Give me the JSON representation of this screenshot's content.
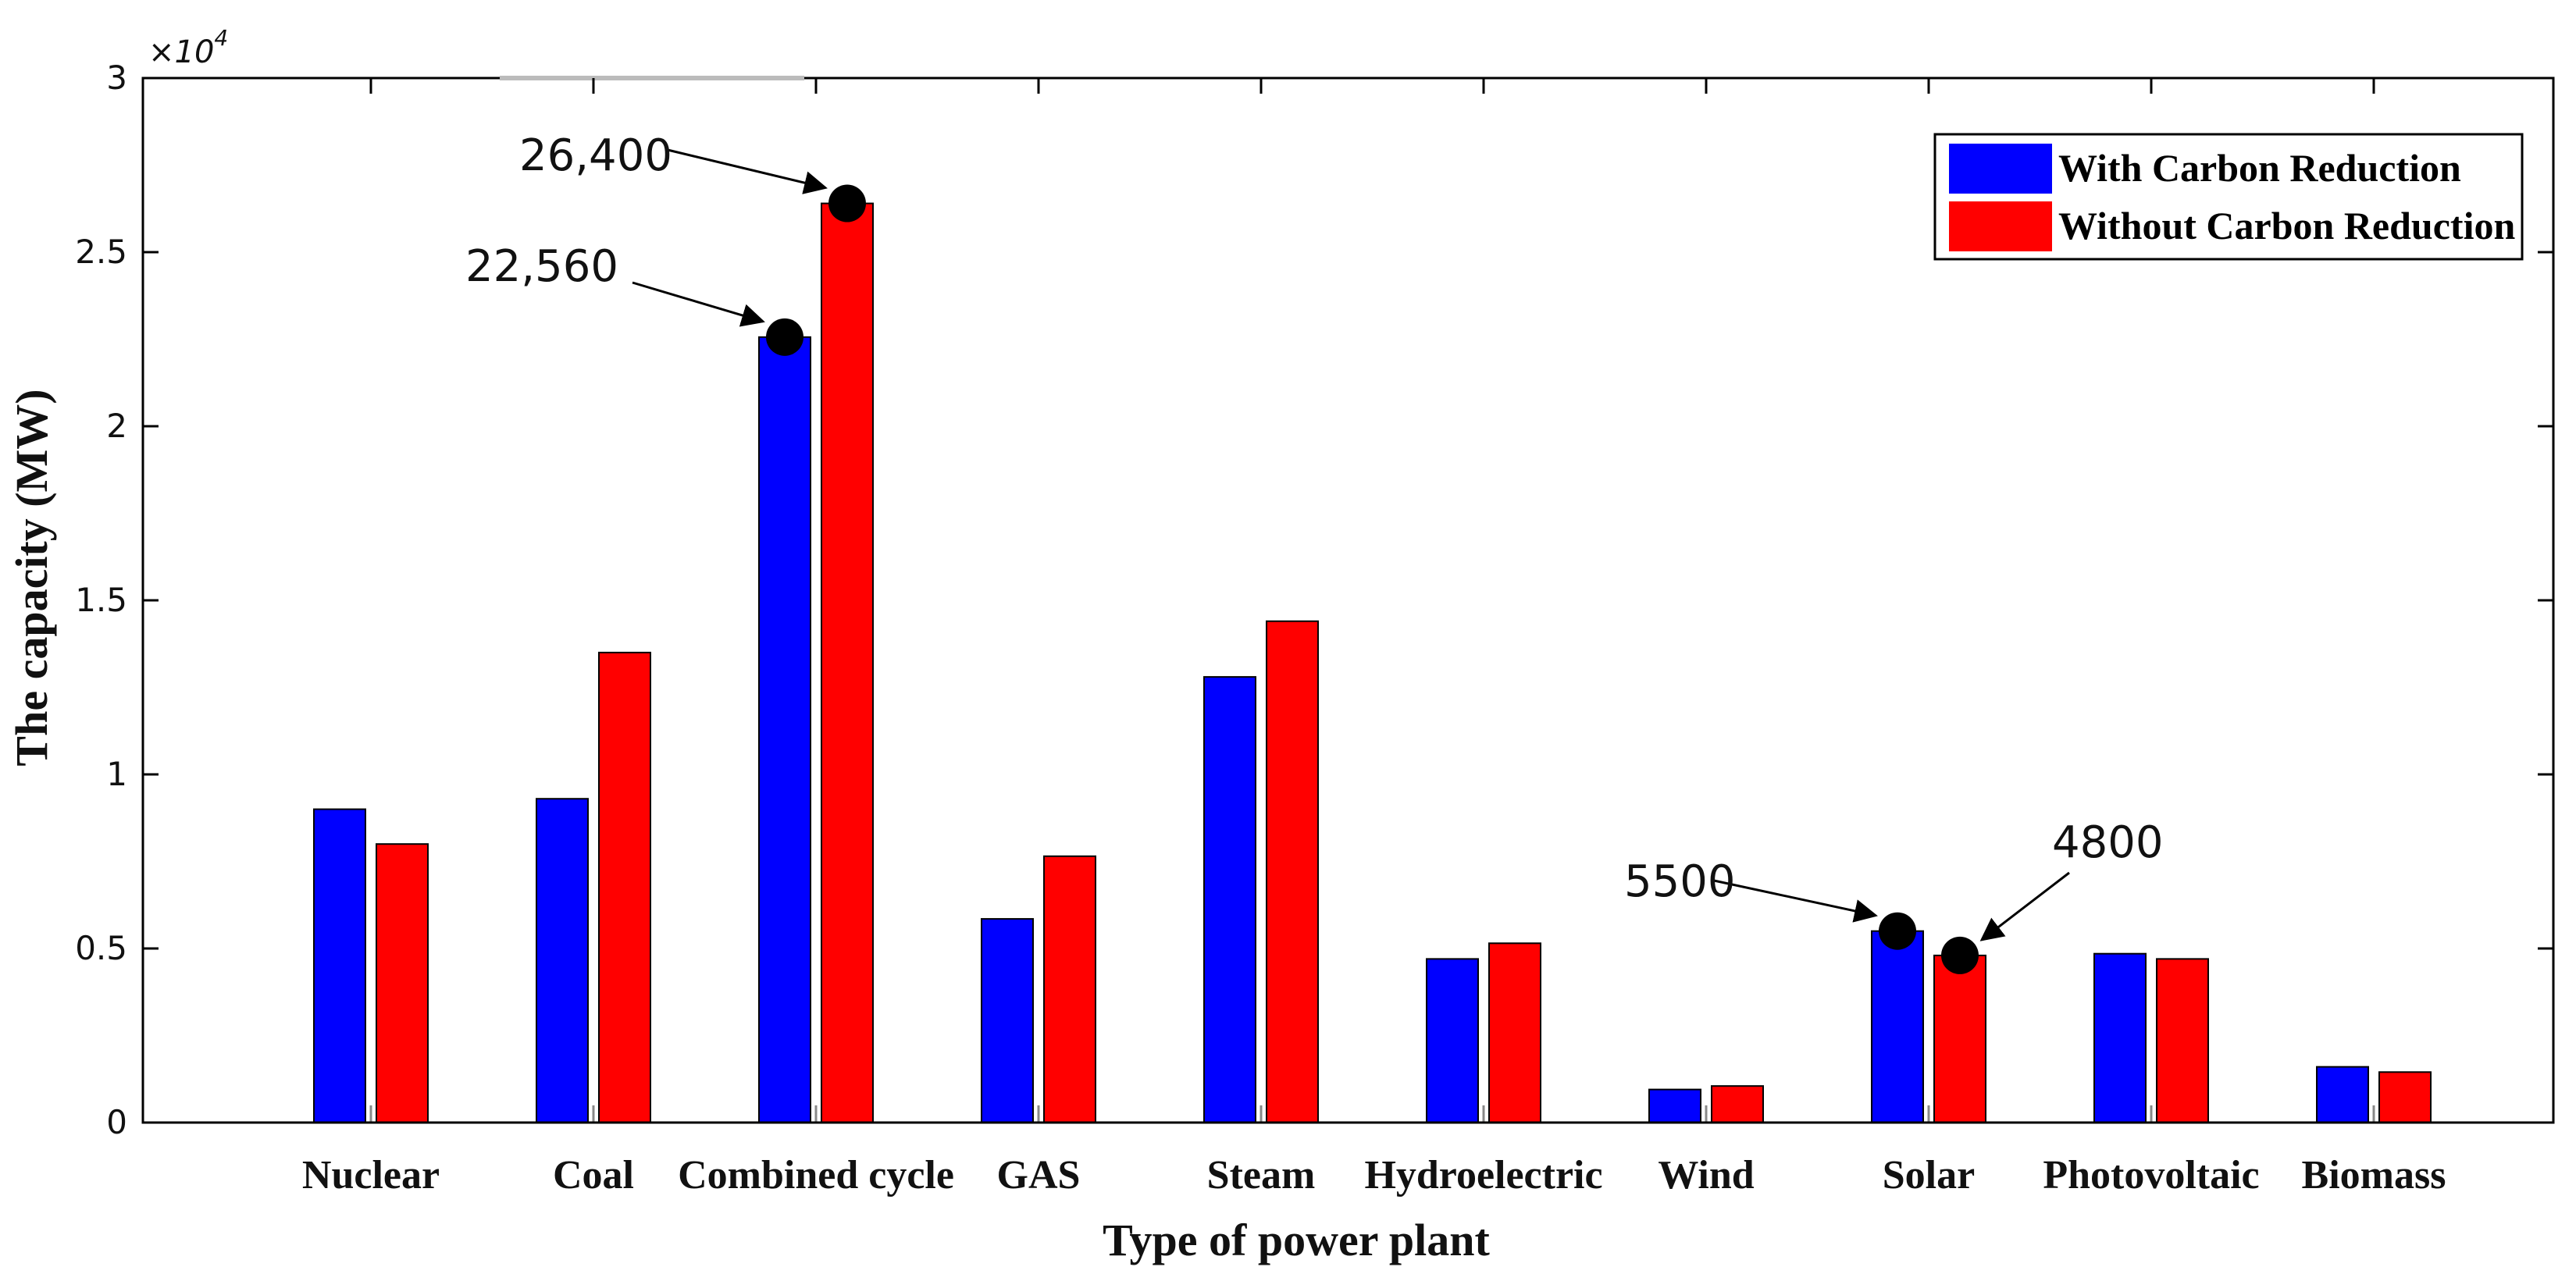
{
  "chart_data": {
    "type": "bar",
    "title": "",
    "xlabel": "Type of power plant",
    "ylabel": "The capacity (MW)",
    "y_exponent_label": "×10",
    "y_exponent_power": "4",
    "ylim": [
      0,
      30000
    ],
    "yticks": [
      0,
      5000,
      10000,
      15000,
      20000,
      25000,
      30000
    ],
    "ytick_labels": [
      "0",
      "0.5",
      "1",
      "1.5",
      "2",
      "2.5",
      "3"
    ],
    "categories": [
      "Nuclear",
      "Coal",
      "Combined cycle",
      "GAS",
      "Steam",
      "Hydroelectric",
      "Wind",
      "Solar",
      "Photovoltaic",
      "Biomass"
    ],
    "series": [
      {
        "name": "With Carbon Reduction",
        "color": "#0000ff",
        "values": [
          9000,
          9300,
          22560,
          5850,
          12800,
          4700,
          950,
          5500,
          4850,
          1600
        ]
      },
      {
        "name": "Without Carbon Reduction",
        "color": "#ff0000",
        "values": [
          8000,
          13500,
          26400,
          7650,
          14400,
          5150,
          1050,
          4800,
          4700,
          1450
        ]
      }
    ],
    "legend_position": "top-right",
    "grid": false,
    "annotations": [
      {
        "text": "26,400",
        "series": 1,
        "category": 2,
        "value": 26400
      },
      {
        "text": "22,560",
        "series": 0,
        "category": 2,
        "value": 22560
      },
      {
        "text": "5500",
        "series": 0,
        "category": 7,
        "value": 5500
      },
      {
        "text": "4800",
        "series": 1,
        "category": 7,
        "value": 4800
      }
    ]
  }
}
